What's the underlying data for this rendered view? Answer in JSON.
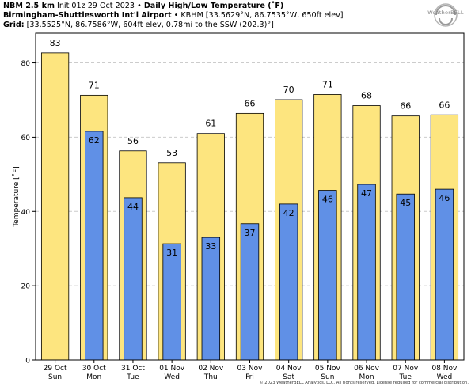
{
  "header": {
    "model": "NBM 2.5 km",
    "init": "Init 01z 29 Oct 2023",
    "sep": "•",
    "product": "Daily High/Low Temperature (˚F)",
    "station_name": "Birmingham-Shuttlesworth Int'l Airport",
    "station_info": "KBHM [33.5629°N, 86.7535°W, 650ft elev]",
    "grid_label": "Grid:",
    "grid_info": "[33.5525°N, 86.7586°W, 604ft elev, 0.78mi to the SSW (202.3)°]"
  },
  "logo": {
    "text": "WeatherBELL",
    "colors": {
      "ring": "#a0a0a0",
      "swirl": "#8c8c8c"
    }
  },
  "footer": {
    "copyright": "© 2023 WeatherBELL Analytics, LLC. All rights reserved. License required for commercial distribution."
  },
  "colors": {
    "high_bar": "#fde57f",
    "low_bar": "#6090e6",
    "bar_edge": "#000000",
    "grid": "#cccccc"
  },
  "chart_data": {
    "type": "bar",
    "title": "Daily High/Low Temperature (˚F)",
    "xlabel": "",
    "ylabel": "Temperature [˚F]",
    "ylim": [
      0,
      88
    ],
    "yticks": [
      0,
      20,
      40,
      60,
      80
    ],
    "grid": true,
    "categories": [
      {
        "date": "29 Oct",
        "day": "Sun"
      },
      {
        "date": "30 Oct",
        "day": "Mon"
      },
      {
        "date": "31 Oct",
        "day": "Tue"
      },
      {
        "date": "01 Nov",
        "day": "Wed"
      },
      {
        "date": "02 Nov",
        "day": "Thu"
      },
      {
        "date": "03 Nov",
        "day": "Fri"
      },
      {
        "date": "04 Nov",
        "day": "Sat"
      },
      {
        "date": "05 Nov",
        "day": "Sun"
      },
      {
        "date": "06 Nov",
        "day": "Mon"
      },
      {
        "date": "07 Nov",
        "day": "Tue"
      },
      {
        "date": "08 Nov",
        "day": "Wed"
      }
    ],
    "series": [
      {
        "name": "High",
        "values": [
          82.7,
          71.3,
          56.3,
          53.1,
          61.0,
          66.4,
          70.1,
          71.5,
          68.5,
          65.7,
          66.0
        ],
        "labels": [
          "83",
          "71",
          "56",
          "53",
          "61",
          "66",
          "70",
          "71",
          "68",
          "66",
          "66"
        ]
      },
      {
        "name": "Low",
        "values": [
          null,
          61.6,
          43.7,
          31.3,
          33.0,
          36.7,
          42.0,
          45.7,
          47.3,
          44.7,
          46.0
        ],
        "labels": [
          "",
          "62",
          "44",
          "31",
          "33",
          "37",
          "42",
          "46",
          "47",
          "45",
          "46"
        ]
      }
    ]
  }
}
